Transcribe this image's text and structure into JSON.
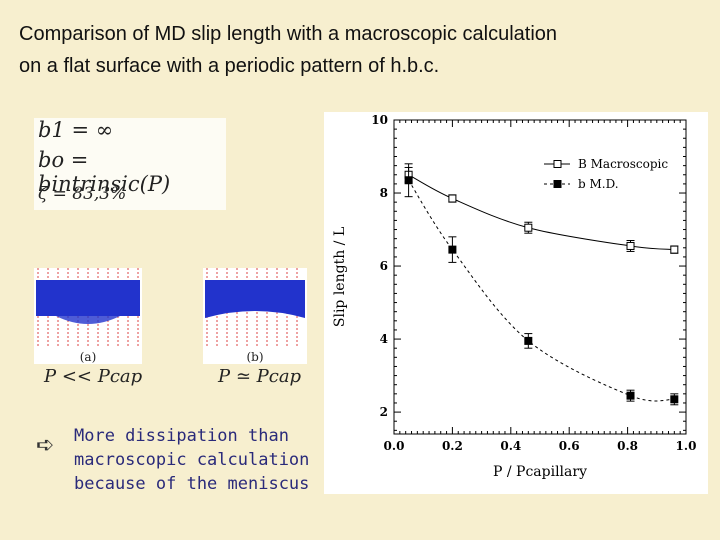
{
  "title_lines": [
    "Comparison of MD slip length with a macroscopic calculation",
    "on a flat surface with a periodic pattern of h.b.c."
  ],
  "formulas": [
    "b1 = ∞",
    "bo = bintrinsic(P)",
    "ζ = 83,3%"
  ],
  "snapshots": [
    {
      "label": "(a)",
      "condition": "P << Pcap"
    },
    {
      "label": "(b)",
      "condition": "P ≃ Pcap"
    }
  ],
  "note": {
    "bullet_icon": "arrow-bullet-icon",
    "lines": [
      "More dissipation than",
      "macroscopic calculation",
      "because of the meniscus"
    ]
  },
  "colors": {
    "sim_dots": "#2233cc",
    "sim_grid": "#dd4444",
    "note_text": "#2a2a7a"
  },
  "chart_data": {
    "type": "line",
    "xlabel": "P / Pcapillary",
    "ylabel": "Slip length / L",
    "xlim": [
      0.0,
      1.0
    ],
    "ylim": [
      1.4,
      10
    ],
    "xticks": [
      "0.0",
      "0.2",
      "0.4",
      "0.6",
      "0.8",
      "1.0"
    ],
    "yticks": [
      "2",
      "4",
      "6",
      "8",
      "10"
    ],
    "legend_position": "top-right",
    "series": [
      {
        "name": "B Macroscopic",
        "marker": "open-square",
        "line": "solid",
        "x": [
          0.05,
          0.2,
          0.46,
          0.81,
          0.96
        ],
        "y": [
          8.5,
          7.85,
          7.05,
          6.55,
          6.45
        ],
        "err": [
          0.2,
          0.1,
          0.15,
          0.15,
          0.1
        ]
      },
      {
        "name": "b M.D.",
        "marker": "filled-square",
        "line": "dashed",
        "x": [
          0.05,
          0.2,
          0.46,
          0.81,
          0.96
        ],
        "y": [
          8.35,
          6.45,
          3.95,
          2.45,
          2.35
        ],
        "err": [
          0.45,
          0.35,
          0.2,
          0.15,
          0.15
        ]
      }
    ]
  }
}
